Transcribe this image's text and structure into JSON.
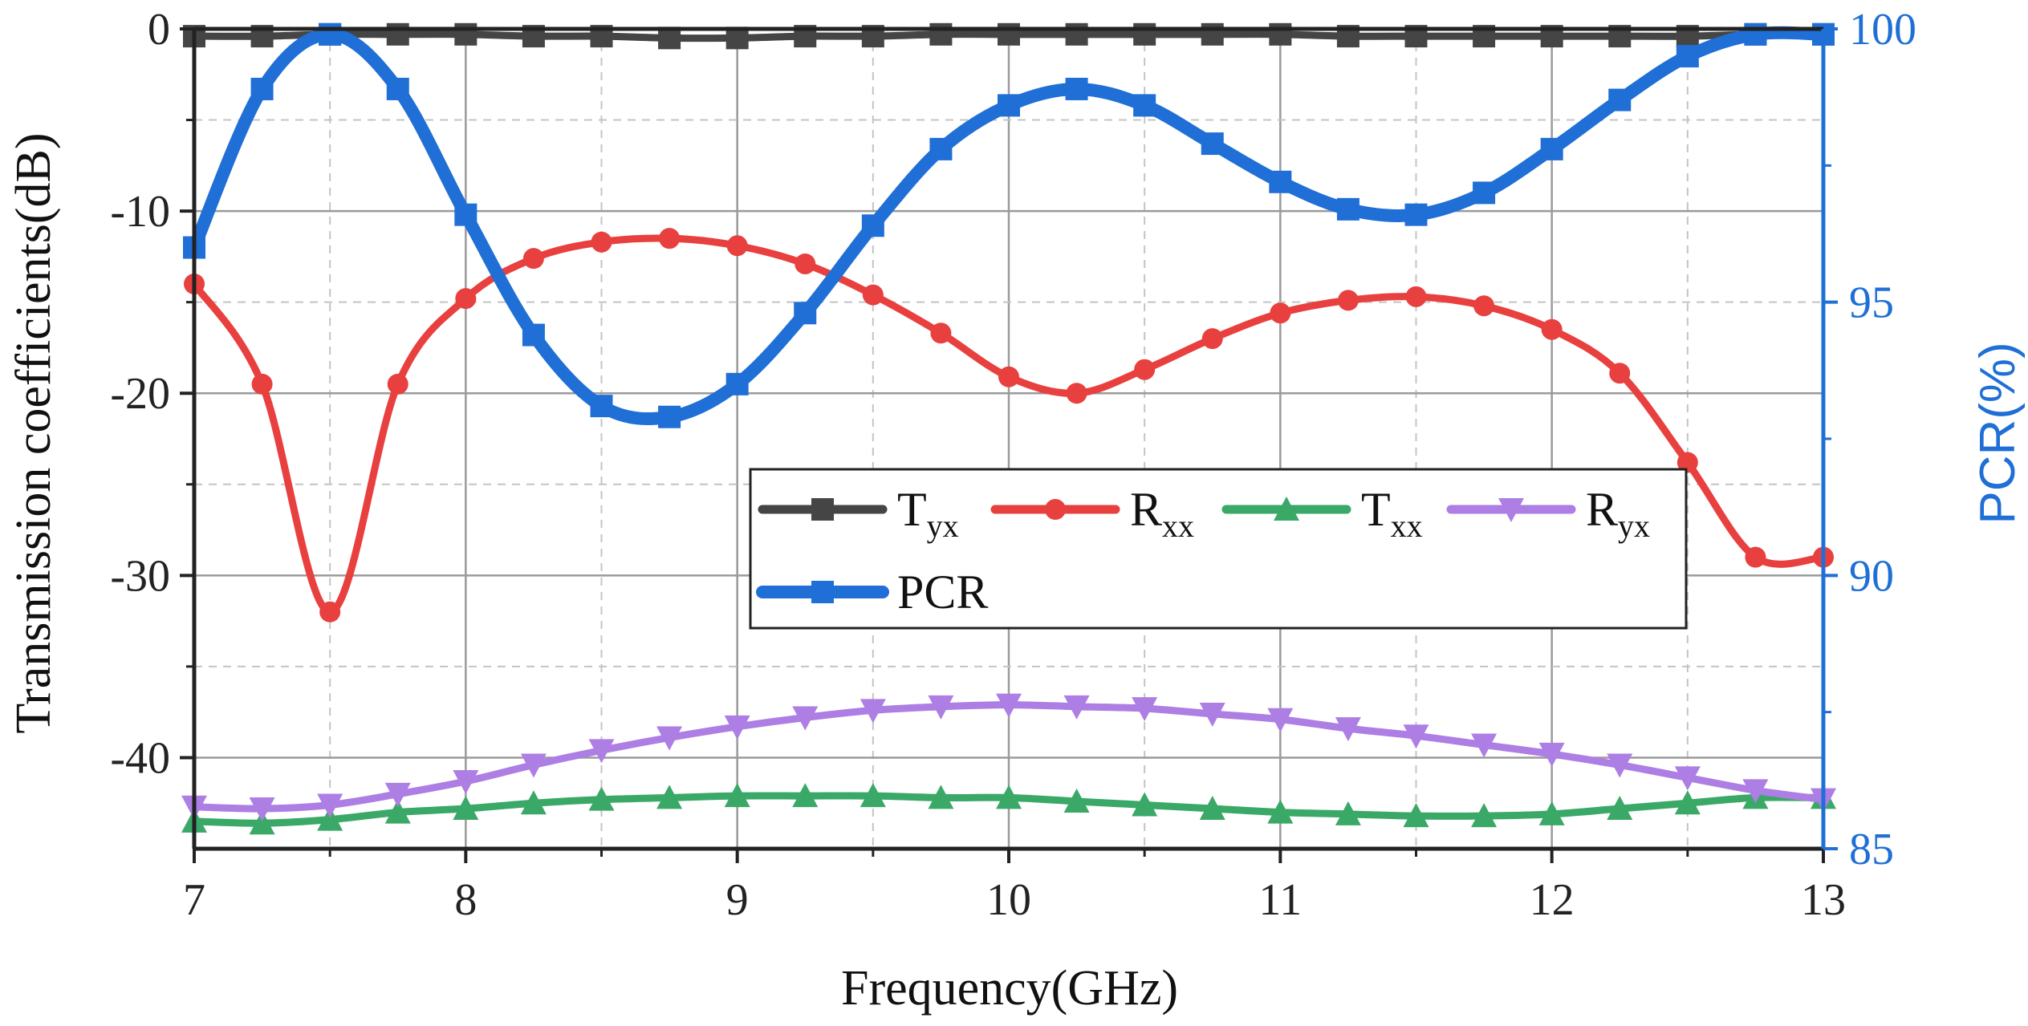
{
  "chart_data": {
    "type": "line",
    "title": "",
    "xlabel": "Frequency(GHz)",
    "ylabel_left": "Transmission coefficients(dB)",
    "ylabel_right": "PCR(%)",
    "xlim": [
      7,
      13
    ],
    "ylim_left": [
      -45,
      0
    ],
    "ylim_right": [
      85,
      100
    ],
    "xticks": [
      "7",
      "8",
      "9",
      "10",
      "11",
      "12",
      "13"
    ],
    "yticks_left": [
      "0",
      "-10",
      "-20",
      "-30",
      "-40"
    ],
    "yticks_right": [
      "100",
      "95",
      "90",
      "85"
    ],
    "grid": true,
    "legend_placement": "center-right",
    "x": [
      7.0,
      7.25,
      7.5,
      7.75,
      8.0,
      8.25,
      8.5,
      8.75,
      9.0,
      9.25,
      9.5,
      9.75,
      10.0,
      10.25,
      10.5,
      10.75,
      11.0,
      11.25,
      11.5,
      11.75,
      12.0,
      12.25,
      12.5,
      12.75,
      13.0
    ],
    "series": [
      {
        "name": "T",
        "sub": "yx",
        "axis": "left",
        "color": "#454545",
        "marker": "square",
        "values": [
          -0.4,
          -0.4,
          -0.3,
          -0.3,
          -0.3,
          -0.4,
          -0.4,
          -0.5,
          -0.5,
          -0.4,
          -0.4,
          -0.3,
          -0.3,
          -0.3,
          -0.3,
          -0.3,
          -0.3,
          -0.4,
          -0.4,
          -0.4,
          -0.4,
          -0.4,
          -0.4,
          -0.3,
          -0.3
        ]
      },
      {
        "name": "R",
        "sub": "xx",
        "axis": "left",
        "color": "#e8403f",
        "marker": "circle",
        "values": [
          -14.0,
          -19.5,
          -32.0,
          -19.5,
          -14.8,
          -12.6,
          -11.7,
          -11.5,
          -11.9,
          -12.9,
          -14.6,
          -16.7,
          -19.1,
          -20.0,
          -18.7,
          -17.0,
          -15.6,
          -14.9,
          -14.7,
          -15.2,
          -16.5,
          -18.9,
          -23.8,
          -29.0,
          -29.0
        ]
      },
      {
        "name": "T",
        "sub": "xx",
        "axis": "left",
        "color": "#3aa867",
        "marker": "triangle-up",
        "values": [
          -43.5,
          -43.6,
          -43.4,
          -43.0,
          -42.8,
          -42.5,
          -42.3,
          -42.2,
          -42.1,
          -42.1,
          -42.1,
          -42.2,
          -42.2,
          -42.4,
          -42.6,
          -42.8,
          -43.0,
          -43.1,
          -43.2,
          -43.2,
          -43.1,
          -42.8,
          -42.5,
          -42.2,
          -42.2
        ]
      },
      {
        "name": "R",
        "sub": "yx",
        "axis": "left",
        "color": "#ad7ee3",
        "marker": "triangle-down",
        "values": [
          -42.7,
          -42.8,
          -42.6,
          -42.0,
          -41.3,
          -40.4,
          -39.6,
          -38.9,
          -38.3,
          -37.8,
          -37.4,
          -37.2,
          -37.1,
          -37.2,
          -37.3,
          -37.6,
          -37.9,
          -38.4,
          -38.8,
          -39.3,
          -39.8,
          -40.4,
          -41.1,
          -41.8,
          -42.3
        ]
      },
      {
        "name": "PCR",
        "sub": "",
        "axis": "right",
        "color": "#1f6fd6",
        "marker": "square",
        "values": [
          96.0,
          98.9,
          99.9,
          98.9,
          96.6,
          94.4,
          93.1,
          92.9,
          93.5,
          94.8,
          96.4,
          97.8,
          98.6,
          98.9,
          98.6,
          97.9,
          97.2,
          96.7,
          96.6,
          97.0,
          97.8,
          98.7,
          99.5,
          99.9,
          99.9
        ]
      }
    ]
  }
}
